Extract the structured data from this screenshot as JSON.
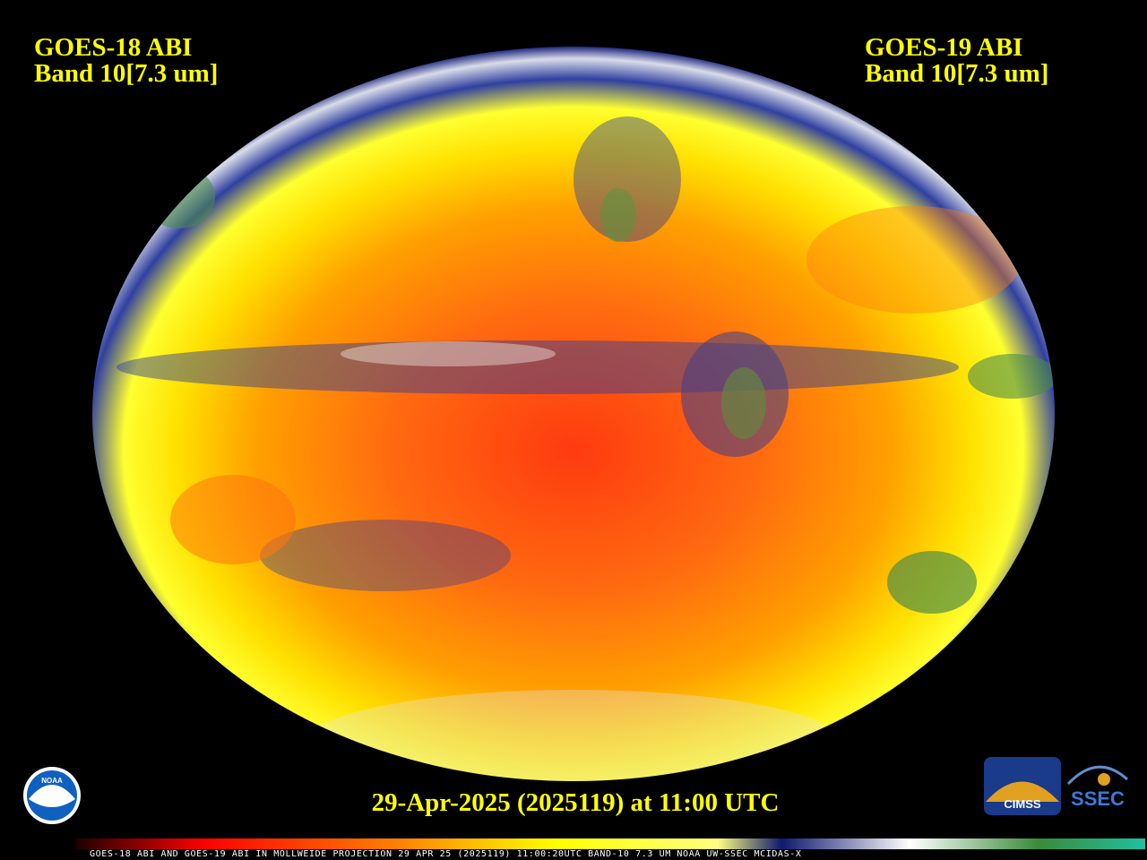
{
  "header": {
    "left": {
      "line1": "GOES-18 ABI",
      "line2": "Band 10[7.3 um]"
    },
    "right": {
      "line1": "GOES-19 ABI",
      "line2": "Band 10[7.3 um]"
    }
  },
  "footer": {
    "date": "29-Apr-2025 (2025119) at 11:00 UTC",
    "caption": "GOES-18 ABI AND GOES-19 ABI IN MOLLWEIDE PROJECTION 29 APR 25 (2025119) 11:00:20UTC BAND-10 7.3 UM NOAA UW-SSEC MCIDAS-X"
  },
  "logos": {
    "noaa": "NOAA",
    "cimss": "CIMSS",
    "ssec": "SSEC"
  }
}
